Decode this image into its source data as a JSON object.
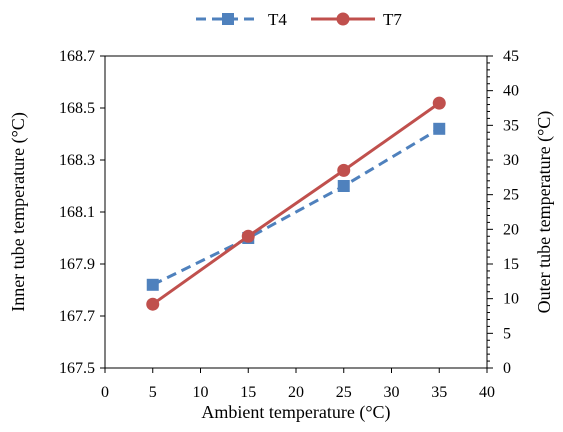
{
  "chart_data": {
    "type": "line",
    "title": "",
    "x": [
      5,
      15,
      25,
      35
    ],
    "xlabel": "Ambient temperature (°C)",
    "xlim": [
      0,
      40
    ],
    "xticks": [
      "0",
      "5",
      "10",
      "15",
      "20",
      "25",
      "30",
      "35",
      "40"
    ],
    "ylabel_left": "Inner tube temperature (°C)",
    "ylim_left": [
      167.5,
      168.7
    ],
    "yticks_left": [
      "167.5",
      "167.7",
      "167.9",
      "168.1",
      "168.3",
      "168.5",
      "168.7"
    ],
    "ylabel_right": "Outer tube temperature (°C)",
    "ylim_right": [
      0,
      45
    ],
    "yticks_right": [
      "0",
      "5",
      "10",
      "15",
      "20",
      "25",
      "30",
      "35",
      "40",
      "45"
    ],
    "legend_position": "top-center",
    "grid": false,
    "series": [
      {
        "name": "T4",
        "axis": "left",
        "values": [
          167.82,
          168.0,
          168.2,
          168.42
        ],
        "color": "#4F81BD",
        "line_style": "dashed",
        "marker": "square"
      },
      {
        "name": "T7",
        "axis": "right",
        "values": [
          9.2,
          19.0,
          28.5,
          38.2
        ],
        "color": "#C0504D",
        "line_style": "solid",
        "marker": "circle"
      }
    ]
  }
}
